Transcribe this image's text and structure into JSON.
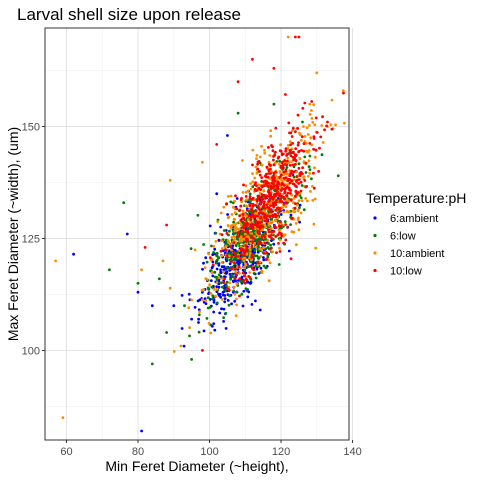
{
  "chart_data": {
    "type": "scatter",
    "title": "Larval shell size upon release",
    "xlabel": "Min Feret Diameter (~height),",
    "ylabel": "Max Feret Diameter (~width), (um)",
    "xlim": [
      54,
      139
    ],
    "ylim": [
      80,
      172
    ],
    "x_ticks": [
      60,
      80,
      100,
      120,
      140
    ],
    "y_ticks": [
      100,
      125,
      150
    ],
    "x_tick_labels": [
      "60",
      "80",
      "100",
      "120",
      "140"
    ],
    "y_tick_labels": [
      "100",
      "125",
      "150"
    ],
    "grid": true,
    "legend_position": "right",
    "legend_title": "Temperature:pH",
    "series": [
      {
        "name": "6:ambient",
        "color": "#0000ff",
        "cluster": {
          "n": 450,
          "mean_x": 109,
          "mean_y": 121,
          "sd_x": 5.5,
          "sd_y": 6.5,
          "corr": 0.72
        },
        "outliers": [
          [
            62,
            121.5
          ],
          [
            77,
            126
          ],
          [
            80,
            113
          ],
          [
            81,
            82
          ],
          [
            84,
            110
          ],
          [
            90,
            110
          ],
          [
            95,
            107
          ],
          [
            98,
            113
          ],
          [
            102,
            135
          ],
          [
            105,
            148
          ]
        ]
      },
      {
        "name": "6:low",
        "color": "#008000",
        "cluster": {
          "n": 450,
          "mean_x": 112,
          "mean_y": 126,
          "sd_x": 6.5,
          "sd_y": 7.5,
          "corr": 0.72
        },
        "outliers": [
          [
            72,
            118
          ],
          [
            76,
            133
          ],
          [
            80,
            115
          ],
          [
            84,
            97
          ],
          [
            86,
            116
          ],
          [
            88,
            104
          ],
          [
            93,
            110
          ],
          [
            95,
            98
          ],
          [
            108,
            153
          ],
          [
            126,
            151
          ],
          [
            136,
            139
          ],
          [
            118,
            155
          ]
        ]
      },
      {
        "name": "10:ambient",
        "color": "#ff8c00",
        "cluster": {
          "n": 500,
          "mean_x": 115,
          "mean_y": 131,
          "sd_x": 7.5,
          "sd_y": 9,
          "corr": 0.72
        },
        "outliers": [
          [
            57,
            120
          ],
          [
            59,
            85
          ],
          [
            81,
            118
          ],
          [
            87,
            120
          ],
          [
            89,
            138
          ],
          [
            92,
            101
          ],
          [
            98,
            142
          ],
          [
            104,
            132
          ],
          [
            122,
            170
          ],
          [
            130,
            162
          ],
          [
            128,
            155
          ],
          [
            133,
            150
          ]
        ]
      },
      {
        "name": "10:low",
        "color": "#ff0000",
        "cluster": {
          "n": 500,
          "mean_x": 117,
          "mean_y": 134,
          "sd_x": 6,
          "sd_y": 8,
          "corr": 0.72
        },
        "outliers": [
          [
            82,
            123
          ],
          [
            88,
            128
          ],
          [
            98,
            100
          ],
          [
            102,
            146
          ],
          [
            108,
            160
          ],
          [
            112,
            165
          ],
          [
            118,
            163
          ],
          [
            124,
            170
          ],
          [
            125,
            170
          ],
          [
            133,
            151
          ],
          [
            110,
            115
          ]
        ]
      }
    ]
  }
}
